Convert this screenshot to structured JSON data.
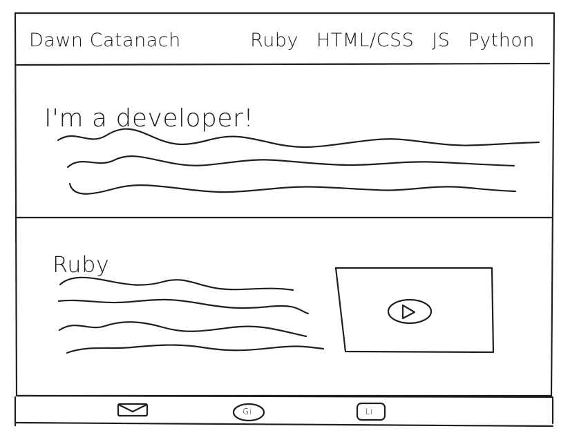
{
  "header": {
    "brand": "Dawn Catanach",
    "nav": [
      "Ruby",
      "HTML/CSS",
      "JS",
      "Python"
    ]
  },
  "hero": {
    "title": "I'm a developer!"
  },
  "section": {
    "title": "Ruby"
  },
  "footer": {
    "github_label": "Gi",
    "linkedin_label": "Li"
  }
}
